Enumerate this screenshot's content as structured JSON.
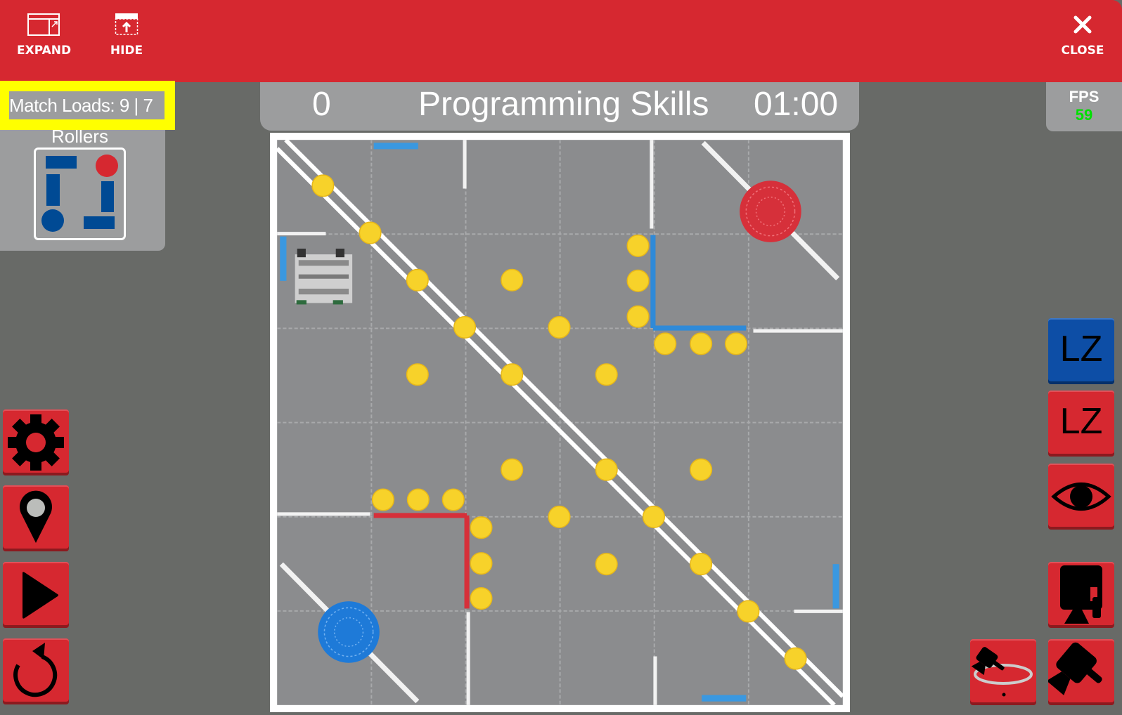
{
  "topbar": {
    "expand_label": "EXPAND",
    "hide_label": "HIDE",
    "close_label": "CLOSE"
  },
  "match_loads": {
    "text": "Match Loads: 9 | 7"
  },
  "rollers": {
    "title": "Rollers",
    "colors": {
      "blue": "#004a94",
      "red": "#d62830"
    }
  },
  "scoreboard": {
    "score": "0",
    "mode": "Programming Skills",
    "timer": "01:00"
  },
  "fps": {
    "label": "FPS",
    "value": "59"
  },
  "left_buttons": [
    {
      "icon": "gear-icon"
    },
    {
      "icon": "location-pin-icon"
    },
    {
      "icon": "play-icon"
    },
    {
      "icon": "reset-icon"
    }
  ],
  "right_buttons": {
    "lz_blue": "LZ",
    "lz_red": "LZ",
    "icons": [
      "eye-icon",
      "camera-robot-icon",
      "camera-orbit-icon",
      "camera-tilt-icon"
    ]
  },
  "colors": {
    "accent_red": "#d62830",
    "panel_gray": "#9c9d9e",
    "background": "#686a67",
    "disc_yellow": "#f7d22a",
    "blue_alliance": "#2f8ad8",
    "red_alliance": "#d6303a",
    "fps_green": "#00e000",
    "highlight": "#ffff00"
  }
}
